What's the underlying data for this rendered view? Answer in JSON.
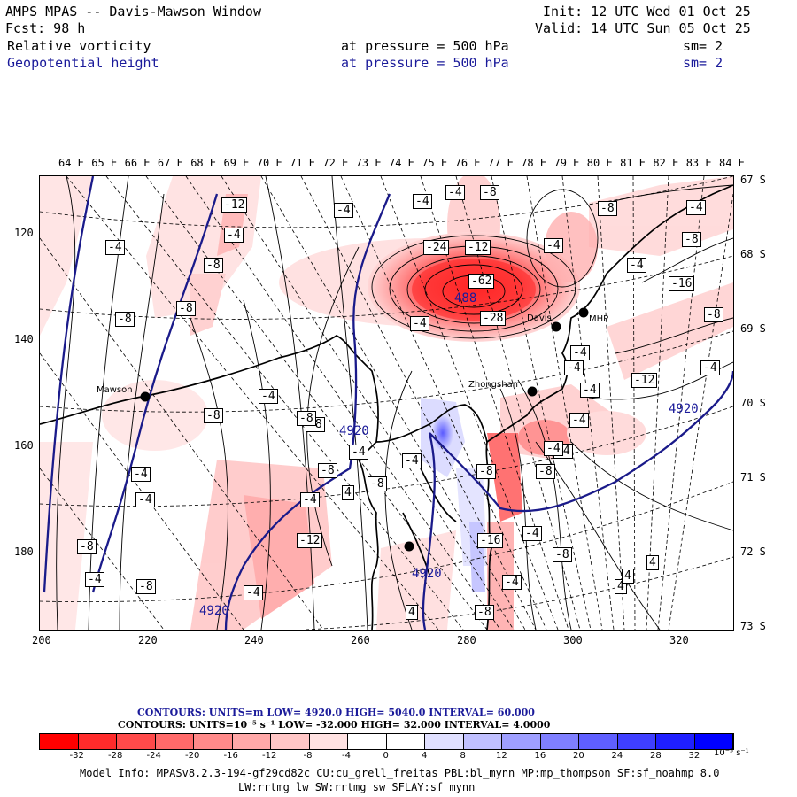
{
  "header": {
    "title": "AMPS MPAS -- Davis-Mawson Window",
    "init": "Init: 12 UTC Wed 01 Oct 25",
    "fcst": "Fcst:   98 h",
    "valid": "Valid: 14 UTC Sun 05 Oct 25",
    "field1_name": "Relative vorticity",
    "field1_level": "at pressure =  500 hPa",
    "field1_sm": "sm= 2",
    "field2_name": "Geopotential height",
    "field2_level": "at pressure =  500 hPa",
    "field2_sm": "sm= 2"
  },
  "lon_labels": [
    "64 E",
    "65 E",
    "66 E",
    "67 E",
    "68 E",
    "69 E",
    "70 E",
    "71 E",
    "72 E",
    "73 E",
    "74 E",
    "75 E",
    "76 E",
    "77 E",
    "78 E",
    "79 E",
    "80 E",
    "81 E",
    "82 E",
    "83 E",
    "84 E"
  ],
  "lat_labels": [
    "67 S",
    "68 S",
    "69 S",
    "70 S",
    "71 S",
    "72 S",
    "73 S"
  ],
  "y_ticks": [
    "120",
    "140",
    "160",
    "180"
  ],
  "x_ticks": [
    "200",
    "220",
    "240",
    "260",
    "280",
    "300",
    "320"
  ],
  "stations": {
    "mawson": "Mawson",
    "zhongshan": "Zhongshan",
    "davis": "Davis",
    "mhp": "MHP"
  },
  "vort_labels": [
    "-4",
    "-12",
    "-4",
    "-4",
    "-4",
    "-8",
    "-4",
    "-8",
    "-8",
    "-24",
    "-12",
    "-8",
    "-4",
    "-16",
    "-8",
    "-4",
    "-4",
    "-8",
    "-4",
    "-62",
    "-28",
    "-8",
    "-4",
    "-8",
    "-4",
    "-4",
    "-12",
    "-4",
    "-8",
    "-8",
    "-4",
    "-8",
    "-8",
    "-4",
    "-8",
    "-4",
    "-8",
    "-4",
    "-4",
    "4",
    "-4",
    "-4",
    "-8",
    "-12",
    "-16",
    "-4",
    "4",
    "-8",
    "-4",
    "-4",
    "-8",
    "-4",
    "-4",
    "4",
    "4",
    "4",
    "-8",
    "-4"
  ],
  "height_labels": {
    "low": "488",
    "mid": "4920",
    "left": "4920",
    "bottom": "4920",
    "right": "4920"
  },
  "contour_info": {
    "line1": "CONTOURS:  UNITS=m  LOW=   4920.0      HIGH=  5040.0       INTERVAL=   60.000",
    "line2": "CONTOURS:  UNITS=10⁻⁵ s⁻¹   LOW=  -32.000       HIGH=  32.000      INTERVAL=   4.0000"
  },
  "colorbar": {
    "colors": [
      "#ff0000",
      "#ff2b2b",
      "#ff4a4a",
      "#ff6a6a",
      "#ff8a8a",
      "#ffa8a8",
      "#ffc6c6",
      "#ffe2e2",
      "#ffffff",
      "#ffffff",
      "#e0e0ff",
      "#c0c0ff",
      "#9f9fff",
      "#7f7fff",
      "#5f5fff",
      "#3f3fff",
      "#1f1fff",
      "#0000ff"
    ],
    "ticks": [
      "-32",
      "-28",
      "-24",
      "-20",
      "-16",
      "-12",
      "-8",
      "-4",
      "0",
      "4",
      "8",
      "12",
      "16",
      "20",
      "24",
      "28",
      "32"
    ],
    "unit": "10⁻⁵ s⁻¹"
  },
  "model_info": {
    "line1": "Model Info: MPASv8.2.3-194-gf29cd82c CU:cu_grell_freitas PBL:bl_mynn MP:mp_thompson SF:sf_noahmp 8.0",
    "line2": "LW:rrtmg_lw SW:rrtmg_sw SFLAY:sf_mynn"
  }
}
